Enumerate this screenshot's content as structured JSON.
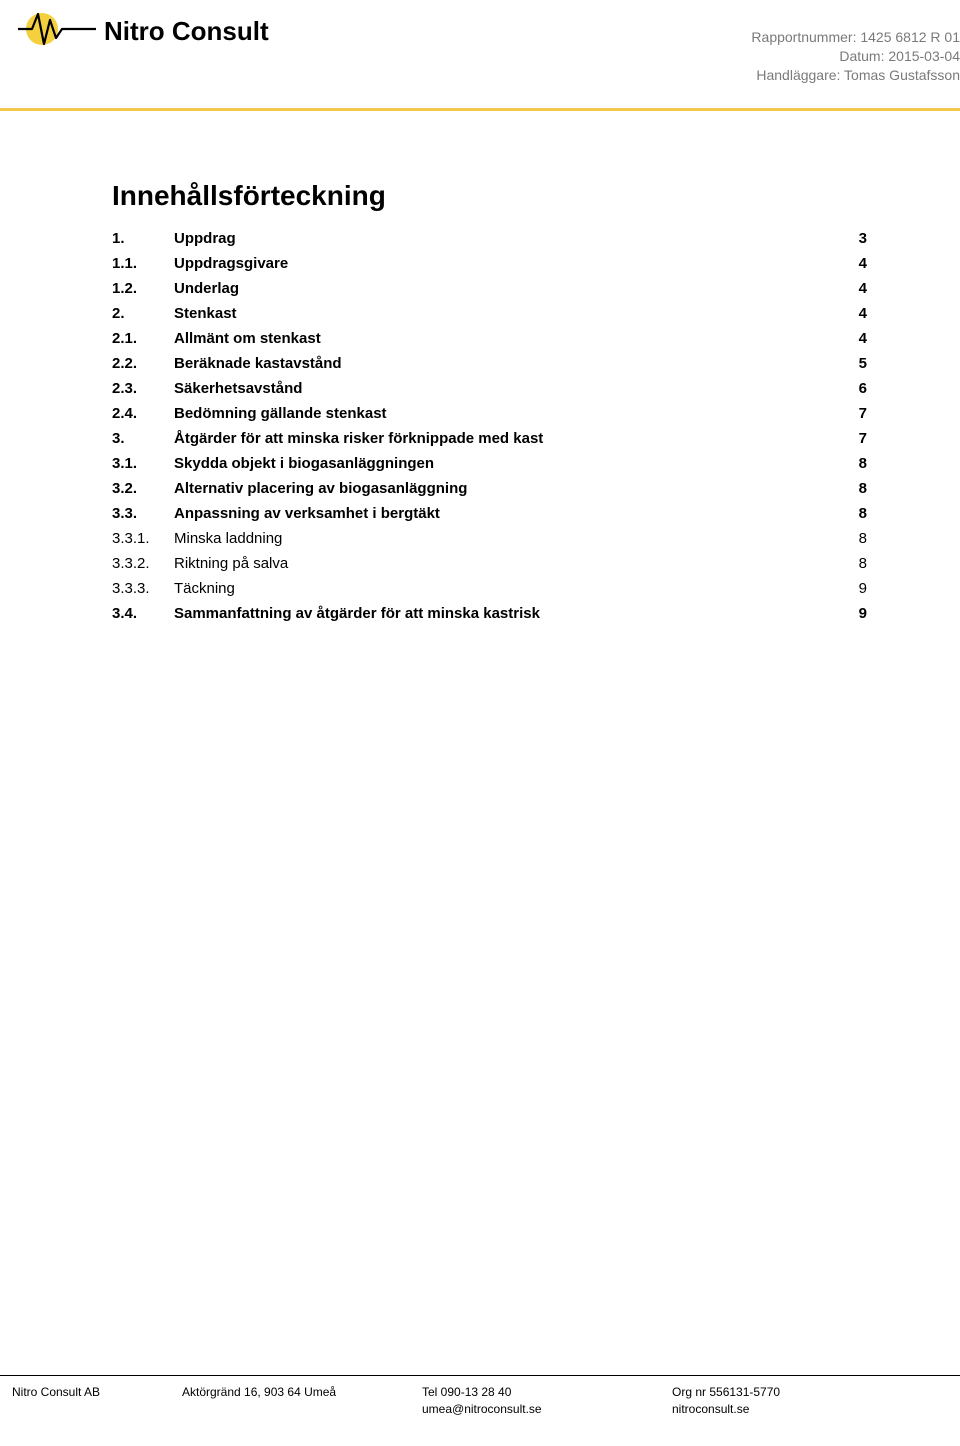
{
  "header": {
    "company_name": "Nitro Consult",
    "meta": {
      "report_label": "Rapportnummer: 1425 6812 R 01",
      "date_label": "Datum: 2015-03-04",
      "handler_label": "Handläggare: Tomas Gustafsson"
    },
    "logo_colors": {
      "circle": "#f4d03f",
      "line": "#000000"
    },
    "hr_color": "#f2c94c"
  },
  "toc": {
    "title": "Innehållsförteckning",
    "entries": [
      {
        "level": 1,
        "num": "1.",
        "label": "Uppdrag",
        "page": "3"
      },
      {
        "level": 2,
        "num": "1.1.",
        "label": "Uppdragsgivare",
        "page": "4"
      },
      {
        "level": 2,
        "num": "1.2.",
        "label": "Underlag",
        "page": "4"
      },
      {
        "level": 1,
        "num": "2.",
        "label": "Stenkast",
        "page": "4"
      },
      {
        "level": 2,
        "num": "2.1.",
        "label": "Allmänt om stenkast",
        "page": "4"
      },
      {
        "level": 2,
        "num": "2.2.",
        "label": "Beräknade kastavstånd",
        "page": "5"
      },
      {
        "level": 2,
        "num": "2.3.",
        "label": "Säkerhetsavstånd",
        "page": "6"
      },
      {
        "level": 2,
        "num": "2.4.",
        "label": "Bedömning gällande stenkast",
        "page": "7"
      },
      {
        "level": 1,
        "num": "3.",
        "label": "Åtgärder för att minska risker förknippade med kast",
        "page": "7"
      },
      {
        "level": 2,
        "num": "3.1.",
        "label": "Skydda objekt i biogasanläggningen",
        "page": "8"
      },
      {
        "level": 2,
        "num": "3.2.",
        "label": "Alternativ placering av biogasanläggning",
        "page": "8"
      },
      {
        "level": 2,
        "num": "3.3.",
        "label": "Anpassning av verksamhet i bergtäkt",
        "page": "8"
      },
      {
        "level": 3,
        "num": "3.3.1.",
        "label": "Minska laddning",
        "page": "8"
      },
      {
        "level": 3,
        "num": "3.3.2.",
        "label": "Riktning på salva",
        "page": "8"
      },
      {
        "level": 3,
        "num": "3.3.3.",
        "label": "Täckning",
        "page": "9"
      },
      {
        "level": 2,
        "num": "3.4.",
        "label": "Sammanfattning av åtgärder för att minska kastrisk",
        "page": "9"
      }
    ]
  },
  "footer": {
    "col1": {
      "line1": "Nitro Consult AB"
    },
    "col2": {
      "line1": "Aktörgränd 16, 903 64 Umeå"
    },
    "col3": {
      "line1": "Tel 090-13 28 40",
      "line2": "umea@nitroconsult.se"
    },
    "col4": {
      "line1": "Org nr 556131-5770",
      "line2": "nitroconsult.se"
    }
  }
}
